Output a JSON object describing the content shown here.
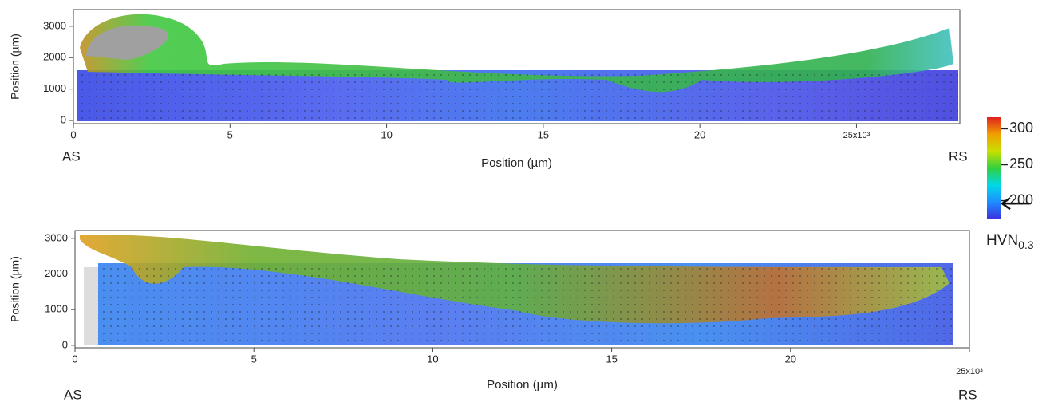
{
  "chart_data": [
    {
      "type": "heatmap",
      "xlabel": "Position (µm)",
      "ylabel": "Position (µm)",
      "xlim": [
        0,
        28300
      ],
      "xticks": [
        0,
        {
          "value": 5000,
          "label": "5"
        },
        {
          "value": 10000,
          "label": "10"
        },
        {
          "value": 15000,
          "label": "15"
        },
        {
          "value": 20000,
          "label": "20"
        },
        {
          "value": 25000,
          "label": "25x10³"
        }
      ],
      "ylim": [
        -100,
        3530
      ],
      "yticks": [
        0,
        1000,
        2000,
        3000
      ],
      "annotations": [
        "AS",
        "RS"
      ]
    },
    {
      "type": "heatmap",
      "xlabel": "Position (µm)",
      "ylabel": "Position (µm)",
      "xlim": [
        0,
        25000
      ],
      "xticks": [
        0,
        {
          "value": 5000,
          "label": "5"
        },
        {
          "value": 10000,
          "label": "10"
        },
        {
          "value": 15000,
          "label": "15"
        },
        {
          "value": 20000,
          "label": "20"
        },
        {
          "value": 25000,
          "label": "25x10³"
        }
      ],
      "ylim": [
        -70,
        3220
      ],
      "yticks": [
        0,
        1000,
        2000,
        3000
      ],
      "annotations": [
        "AS",
        "RS"
      ]
    }
  ],
  "colorbar": {
    "label": "HVN",
    "label_sub": "0.3",
    "lim": [
      174,
      316
    ],
    "ticks": [
      200,
      250,
      300
    ],
    "marker": 196,
    "colors": [
      "#3c2fe0",
      "#1e8cff",
      "#00d8e8",
      "#30d040",
      "#c8e000",
      "#f0a000",
      "#e02020"
    ]
  }
}
